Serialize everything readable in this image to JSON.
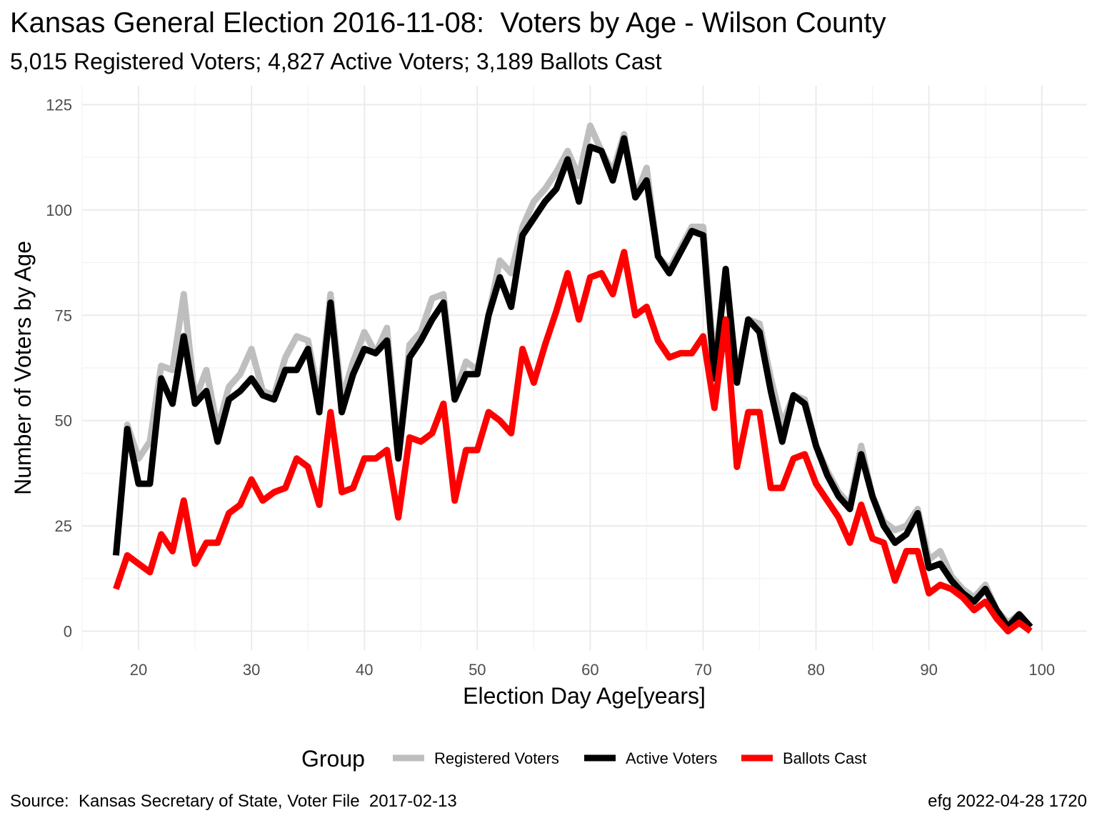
{
  "chart_data": {
    "type": "line",
    "title": "Kansas General Election 2016-11-08:  Voters by Age - Wilson County",
    "subtitle": "5,015 Registered Voters; 4,827 Active Voters; 3,189 Ballots Cast",
    "xlabel": "Election Day Age[years]",
    "ylabel": "Number of Voters by Age",
    "xlim": [
      18,
      99
    ],
    "ylim": [
      0,
      125
    ],
    "x_ticks": [
      20,
      30,
      40,
      50,
      60,
      70,
      80,
      90,
      100
    ],
    "y_ticks": [
      0,
      25,
      50,
      75,
      100,
      125
    ],
    "grid": true,
    "legend": {
      "title": "Group",
      "position": "bottom"
    },
    "x": [
      18,
      19,
      20,
      21,
      22,
      23,
      24,
      25,
      26,
      27,
      28,
      29,
      30,
      31,
      32,
      33,
      34,
      35,
      36,
      37,
      38,
      39,
      40,
      41,
      42,
      43,
      44,
      45,
      46,
      47,
      48,
      49,
      50,
      51,
      52,
      53,
      54,
      55,
      56,
      57,
      58,
      59,
      60,
      61,
      62,
      63,
      64,
      65,
      66,
      67,
      68,
      69,
      70,
      71,
      72,
      73,
      74,
      75,
      76,
      77,
      78,
      79,
      80,
      81,
      82,
      83,
      84,
      85,
      86,
      87,
      88,
      89,
      90,
      91,
      92,
      93,
      94,
      95,
      96,
      97,
      98,
      99
    ],
    "series": [
      {
        "name": "Registered Voters",
        "color": "#bebebe",
        "values": [
          18,
          49,
          41,
          45,
          63,
          62,
          80,
          55,
          62,
          48,
          58,
          61,
          67,
          57,
          56,
          65,
          70,
          69,
          55,
          80,
          55,
          64,
          71,
          66,
          72,
          42,
          68,
          71,
          79,
          80,
          56,
          64,
          62,
          75,
          88,
          85,
          96,
          102,
          105,
          109,
          114,
          108,
          120,
          114,
          109,
          118,
          103,
          110,
          89,
          86,
          91,
          96,
          96,
          63,
          86,
          60,
          74,
          73,
          60,
          49,
          56,
          55,
          44,
          38,
          33,
          30,
          44,
          32,
          26,
          24,
          25,
          29,
          17,
          19,
          13,
          10,
          8,
          11,
          5,
          2,
          4,
          1
        ]
      },
      {
        "name": "Active Voters",
        "color": "#000000",
        "values": [
          18,
          48,
          35,
          35,
          60,
          54,
          70,
          54,
          57,
          45,
          55,
          57,
          60,
          56,
          55,
          62,
          62,
          67,
          52,
          78,
          52,
          61,
          67,
          66,
          69,
          41,
          65,
          69,
          74,
          78,
          55,
          61,
          61,
          75,
          84,
          77,
          94,
          98,
          102,
          105,
          112,
          102,
          115,
          114,
          107,
          117,
          103,
          107,
          89,
          85,
          90,
          95,
          94,
          60,
          86,
          59,
          74,
          71,
          57,
          45,
          56,
          54,
          44,
          37,
          32,
          29,
          42,
          32,
          25,
          21,
          23,
          28,
          15,
          16,
          12,
          9,
          7,
          10,
          5,
          1,
          4,
          1
        ]
      },
      {
        "name": "Ballots Cast",
        "color": "#ff0000",
        "values": [
          10,
          18,
          16,
          14,
          23,
          19,
          31,
          16,
          21,
          21,
          28,
          30,
          36,
          31,
          33,
          34,
          41,
          39,
          30,
          52,
          33,
          34,
          41,
          41,
          43,
          27,
          46,
          45,
          47,
          54,
          31,
          43,
          43,
          52,
          50,
          47,
          67,
          59,
          68,
          76,
          85,
          74,
          84,
          85,
          80,
          90,
          75,
          77,
          69,
          65,
          66,
          66,
          70,
          53,
          74,
          39,
          52,
          52,
          34,
          34,
          41,
          42,
          35,
          31,
          27,
          21,
          30,
          22,
          21,
          12,
          19,
          19,
          9,
          11,
          10,
          8,
          5,
          7,
          3,
          0,
          2,
          0
        ]
      }
    ]
  },
  "caption": {
    "source": "Source:  Kansas Secretary of State, Voter File  2017-02-13",
    "stamp": "efg 2022-04-28 1720"
  }
}
